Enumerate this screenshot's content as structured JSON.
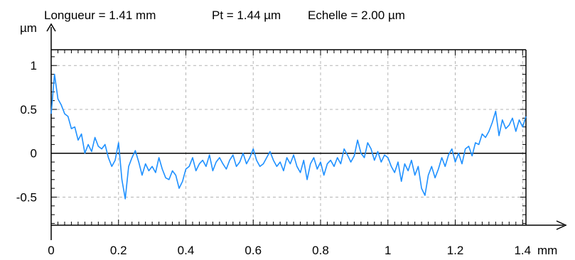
{
  "chart_data": {
    "type": "line",
    "header": {
      "length_label": "Longueur = 1.41 mm",
      "pt_label": "Pt = 1.44 µm",
      "scale_label": "Echelle = 2.00 µm"
    },
    "xunit": "mm",
    "yunit": "µm",
    "xlim": [
      0,
      1.41
    ],
    "ylim": [
      -0.82,
      1.18
    ],
    "xticks": [
      {
        "value": 0,
        "label": "0"
      },
      {
        "value": 0.2,
        "label": "0.2"
      },
      {
        "value": 0.4,
        "label": "0.4"
      },
      {
        "value": 0.6,
        "label": "0.6"
      },
      {
        "value": 0.8,
        "label": "0.8"
      },
      {
        "value": 1.0,
        "label": "1"
      },
      {
        "value": 1.2,
        "label": "1.2"
      },
      {
        "value": 1.4,
        "label": "1.4"
      }
    ],
    "yticks": [
      {
        "value": 1,
        "label": "1"
      },
      {
        "value": 0.5,
        "label": "0.5"
      },
      {
        "value": 0,
        "label": "0"
      },
      {
        "value": -0.5,
        "label": "-0.5"
      }
    ],
    "grid": true,
    "zero_line": true,
    "colors": {
      "profile": "#1e90ff",
      "grid": "#b4b4b4",
      "axis": "#000000"
    },
    "series": [
      {
        "x": [
          0.0,
          0.01,
          0.02,
          0.03,
          0.04,
          0.05,
          0.06,
          0.07,
          0.08,
          0.09,
          0.1,
          0.11,
          0.12,
          0.13,
          0.14,
          0.15,
          0.16,
          0.17,
          0.18,
          0.19,
          0.2,
          0.21,
          0.22,
          0.23,
          0.24,
          0.25,
          0.26,
          0.27,
          0.28,
          0.29,
          0.3,
          0.31,
          0.32,
          0.33,
          0.34,
          0.35,
          0.36,
          0.37,
          0.38,
          0.39,
          0.4,
          0.41,
          0.42,
          0.43,
          0.44,
          0.45,
          0.46,
          0.47,
          0.48,
          0.49,
          0.5,
          0.51,
          0.52,
          0.53,
          0.54,
          0.55,
          0.56,
          0.57,
          0.58,
          0.59,
          0.6,
          0.61,
          0.62,
          0.63,
          0.64,
          0.65,
          0.66,
          0.67,
          0.68,
          0.69,
          0.7,
          0.71,
          0.72,
          0.73,
          0.74,
          0.75,
          0.76,
          0.77,
          0.78,
          0.79,
          0.8,
          0.81,
          0.82,
          0.83,
          0.84,
          0.85,
          0.86,
          0.87,
          0.88,
          0.89,
          0.9,
          0.91,
          0.92,
          0.93,
          0.94,
          0.95,
          0.96,
          0.97,
          0.98,
          0.99,
          1.0,
          1.01,
          1.02,
          1.03,
          1.04,
          1.05,
          1.06,
          1.07,
          1.08,
          1.09,
          1.1,
          1.11,
          1.12,
          1.13,
          1.14,
          1.15,
          1.16,
          1.17,
          1.18,
          1.19,
          1.2,
          1.21,
          1.22,
          1.23,
          1.24,
          1.25,
          1.26,
          1.27,
          1.28,
          1.29,
          1.3,
          1.31,
          1.32,
          1.33,
          1.34,
          1.35,
          1.36,
          1.37,
          1.38,
          1.39,
          1.4,
          1.41
        ],
        "y": [
          0.45,
          0.9,
          0.62,
          0.55,
          0.45,
          0.42,
          0.28,
          0.3,
          0.15,
          0.22,
          0.0,
          0.1,
          0.02,
          0.18,
          0.08,
          0.05,
          0.1,
          -0.05,
          -0.15,
          -0.08,
          0.12,
          -0.3,
          -0.52,
          -0.15,
          -0.05,
          0.03,
          -0.1,
          -0.25,
          -0.12,
          -0.2,
          -0.15,
          -0.22,
          -0.05,
          -0.18,
          -0.28,
          -0.3,
          -0.2,
          -0.25,
          -0.4,
          -0.32,
          -0.18,
          -0.15,
          -0.05,
          -0.2,
          -0.12,
          -0.08,
          -0.15,
          -0.02,
          -0.2,
          -0.1,
          -0.05,
          -0.12,
          -0.18,
          -0.08,
          -0.02,
          -0.15,
          -0.1,
          0.0,
          -0.12,
          -0.05,
          0.05,
          -0.08,
          -0.15,
          -0.12,
          -0.05,
          0.02,
          -0.08,
          -0.15,
          -0.1,
          -0.2,
          -0.05,
          -0.12,
          -0.02,
          -0.15,
          -0.22,
          -0.08,
          -0.3,
          -0.12,
          -0.05,
          -0.18,
          -0.1,
          -0.25,
          -0.12,
          -0.08,
          -0.15,
          -0.05,
          -0.12,
          0.05,
          -0.02,
          -0.1,
          -0.03,
          0.15,
          0.0,
          -0.05,
          0.12,
          0.05,
          -0.08,
          0.02,
          -0.1,
          -0.02,
          -0.05,
          -0.15,
          -0.22,
          -0.1,
          -0.32,
          -0.12,
          -0.2,
          -0.08,
          -0.25,
          -0.15,
          -0.4,
          -0.48,
          -0.25,
          -0.15,
          -0.28,
          -0.18,
          -0.05,
          -0.15,
          -0.02,
          0.05,
          -0.1,
          0.0,
          -0.12,
          0.05,
          0.08,
          -0.03,
          0.12,
          0.1,
          0.22,
          0.18,
          0.25,
          0.35,
          0.48,
          0.2,
          0.38,
          0.28,
          0.32,
          0.4,
          0.25,
          0.38,
          0.3,
          0.42
        ]
      }
    ]
  }
}
